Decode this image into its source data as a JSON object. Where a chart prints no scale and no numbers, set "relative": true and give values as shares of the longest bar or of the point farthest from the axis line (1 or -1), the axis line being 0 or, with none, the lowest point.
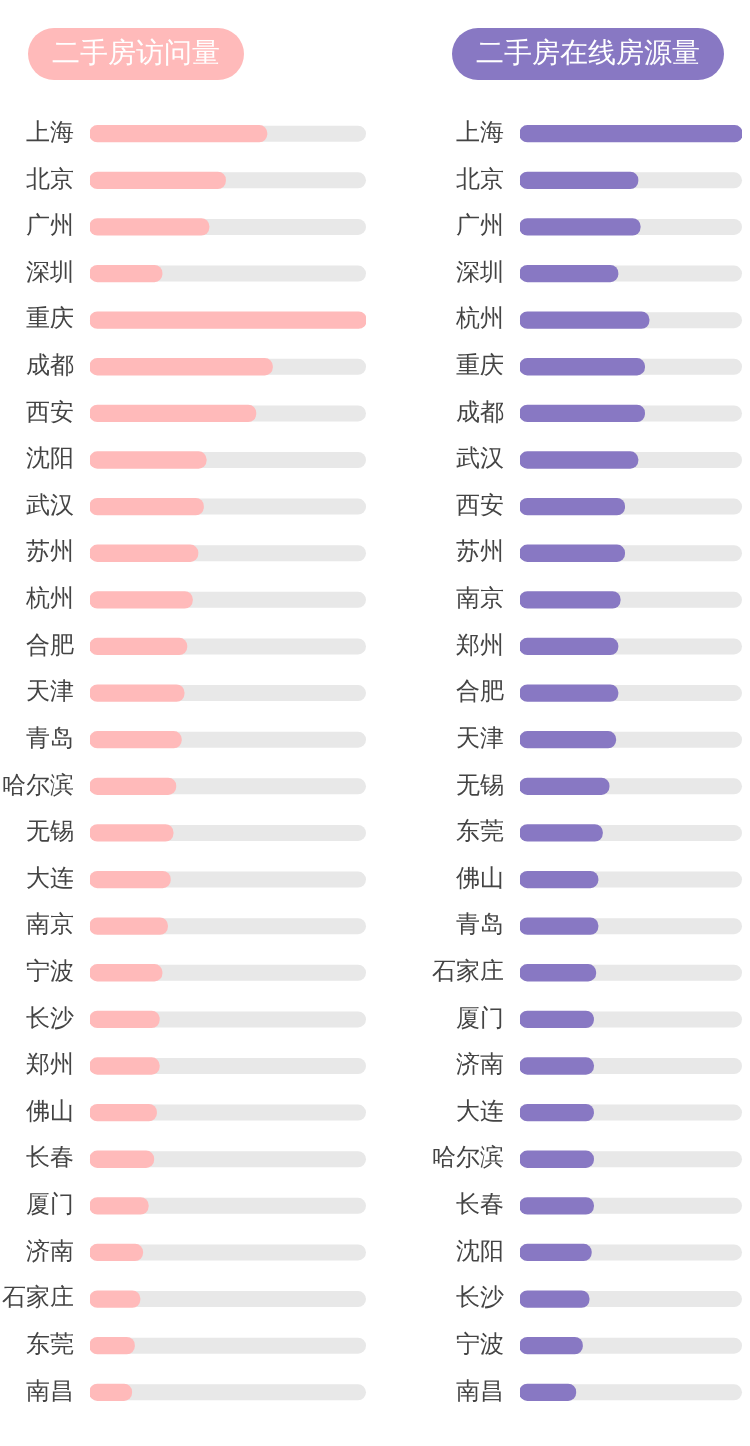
{
  "chart_data": [
    {
      "type": "bar",
      "orientation": "horizontal",
      "relative": true,
      "grid": false,
      "title": "二手房访问量",
      "categories": [
        "上海",
        "北京",
        "广州",
        "深圳",
        "重庆",
        "成都",
        "西安",
        "沈阳",
        "武汉",
        "苏州",
        "杭州",
        "合肥",
        "天津",
        "青岛",
        "哈尔滨",
        "无锡",
        "大连",
        "南京",
        "宁波",
        "长沙",
        "郑州",
        "佛山",
        "长春",
        "厦门",
        "济南",
        "石家庄",
        "东莞",
        "南昌"
      ],
      "series": [
        {
          "color": "#ffbaba",
          "values": [
            0.64,
            0.49,
            0.43,
            0.26,
            1,
            0.66,
            0.6,
            0.42,
            0.41,
            0.39,
            0.37,
            0.35,
            0.34,
            0.33,
            0.31,
            0.3,
            0.29,
            0.28,
            0.26,
            0.25,
            0.25,
            0.24,
            0.23,
            0.21,
            0.19,
            0.18,
            0.16,
            0.15
          ]
        }
      ]
    },
    {
      "type": "bar",
      "orientation": "horizontal",
      "relative": true,
      "grid": false,
      "title": "二手房在线房源量",
      "categories": [
        "上海",
        "北京",
        "广州",
        "深圳",
        "杭州",
        "重庆",
        "成都",
        "武汉",
        "西安",
        "苏州",
        "南京",
        "郑州",
        "合肥",
        "天津",
        "无锡",
        "东莞",
        "佛山",
        "青岛",
        "石家庄",
        "厦门",
        "济南",
        "大连",
        "哈尔滨",
        "长春",
        "沈阳",
        "长沙",
        "宁波",
        "南昌"
      ],
      "series": [
        {
          "color": "#8878c3",
          "values": [
            1,
            0.53,
            0.54,
            0.44,
            0.58,
            0.56,
            0.56,
            0.53,
            0.47,
            0.47,
            0.45,
            0.44,
            0.44,
            0.43,
            0.4,
            0.37,
            0.35,
            0.35,
            0.34,
            0.33,
            0.33,
            0.33,
            0.33,
            0.33,
            0.32,
            0.31,
            0.28,
            0.25
          ]
        }
      ]
    }
  ]
}
